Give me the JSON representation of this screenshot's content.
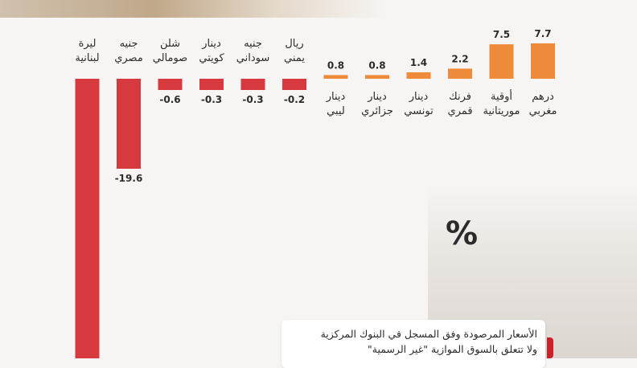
{
  "colors": {
    "positive": "#ed8b3a",
    "negative": "#d63a3f",
    "label_text": "#2b2b2b",
    "value_text": "#2b2b2b"
  },
  "percent_sign": "%",
  "note": {
    "line1": "الأسعار المرصودة وفق المسجل في البنوك المركزية",
    "line2": "ولا تتعلق بالسوق الموازية \"غير الرسمية\""
  },
  "chart_data": {
    "type": "bar",
    "orientation": "vertical",
    "direction": "rtl",
    "categories": [
      [
        "درهم",
        "مغربي"
      ],
      [
        "أوقية",
        "موريتانية"
      ],
      [
        "فرنك",
        "قمري"
      ],
      [
        "دينار",
        "تونسي"
      ],
      [
        "دينار",
        "جزائري"
      ],
      [
        "دينار",
        "ليبي"
      ],
      [
        "ريال",
        "يمني"
      ],
      [
        "جنيه",
        "سوداني"
      ],
      [
        "دينار",
        "كويتي"
      ],
      [
        "شلن",
        "صومالي"
      ],
      [
        "جنيه",
        "مصري"
      ],
      [
        "ليرة",
        "لبنانية"
      ]
    ],
    "values": [
      7.7,
      7.5,
      2.2,
      1.4,
      0.8,
      0.8,
      -0.2,
      -0.3,
      -0.3,
      -0.6,
      -19.6,
      null
    ],
    "value_labels": [
      "7.7",
      "7.5",
      "2.2",
      "1.4",
      "0.8",
      "0.8",
      "-0.2",
      "-0.3",
      "-0.3",
      "-0.6",
      "-19.6",
      ""
    ],
    "ylim": [
      -33,
      7.7
    ],
    "title": "",
    "xlabel": "",
    "ylabel": ""
  }
}
